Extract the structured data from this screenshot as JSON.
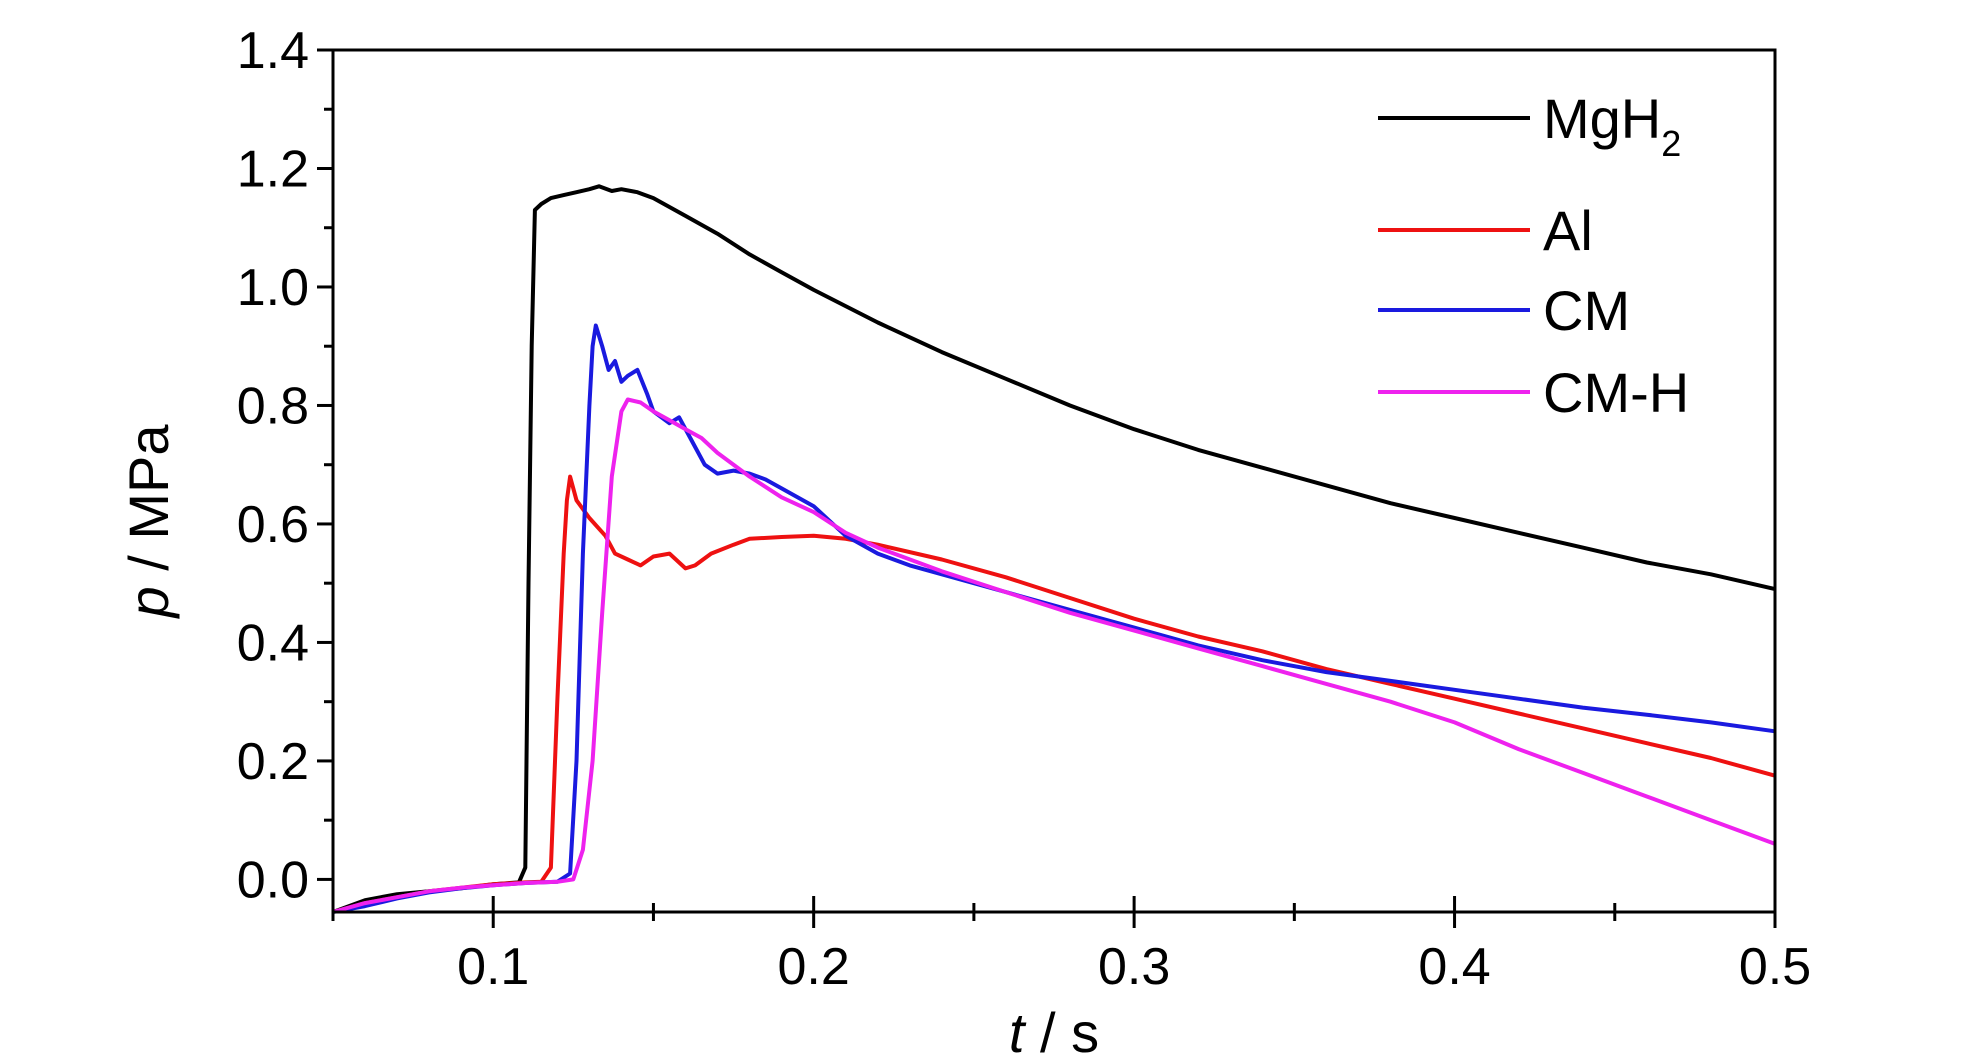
{
  "chart_data": {
    "type": "line",
    "title": "",
    "xlabel": {
      "var": "t",
      "unit": " / s"
    },
    "ylabel": {
      "var": "p",
      "unit": " / MPa"
    },
    "xlim": [
      0.05,
      0.5
    ],
    "ylim": [
      -0.055,
      1.4
    ],
    "xticks": [
      "0.1",
      "0.2",
      "0.3",
      "0.4",
      "0.5"
    ],
    "yticks": [
      "0.0",
      "0.2",
      "0.4",
      "0.6",
      "0.8",
      "1.0",
      "1.2",
      "1.4"
    ],
    "grid": false,
    "legend_position": "top-right",
    "series": [
      {
        "name": "MgH",
        "name_sub": "2",
        "color": "#000000",
        "points": [
          [
            0.05,
            -0.055
          ],
          [
            0.06,
            -0.035
          ],
          [
            0.07,
            -0.025
          ],
          [
            0.08,
            -0.02
          ],
          [
            0.09,
            -0.015
          ],
          [
            0.1,
            -0.008
          ],
          [
            0.108,
            -0.005
          ],
          [
            0.11,
            0.02
          ],
          [
            0.111,
            0.5
          ],
          [
            0.112,
            0.9
          ],
          [
            0.113,
            1.13
          ],
          [
            0.115,
            1.14
          ],
          [
            0.118,
            1.15
          ],
          [
            0.122,
            1.155
          ],
          [
            0.126,
            1.16
          ],
          [
            0.13,
            1.165
          ],
          [
            0.133,
            1.17
          ],
          [
            0.137,
            1.162
          ],
          [
            0.14,
            1.165
          ],
          [
            0.145,
            1.16
          ],
          [
            0.15,
            1.15
          ],
          [
            0.16,
            1.12
          ],
          [
            0.17,
            1.09
          ],
          [
            0.18,
            1.055
          ],
          [
            0.19,
            1.025
          ],
          [
            0.2,
            0.995
          ],
          [
            0.22,
            0.94
          ],
          [
            0.24,
            0.89
          ],
          [
            0.26,
            0.845
          ],
          [
            0.28,
            0.8
          ],
          [
            0.3,
            0.76
          ],
          [
            0.32,
            0.725
          ],
          [
            0.34,
            0.695
          ],
          [
            0.36,
            0.665
          ],
          [
            0.38,
            0.635
          ],
          [
            0.4,
            0.61
          ],
          [
            0.42,
            0.585
          ],
          [
            0.44,
            0.56
          ],
          [
            0.46,
            0.535
          ],
          [
            0.48,
            0.515
          ],
          [
            0.5,
            0.49
          ]
        ]
      },
      {
        "name": "Al",
        "name_sub": "",
        "color": "#ee1111",
        "points": [
          [
            0.05,
            -0.055
          ],
          [
            0.06,
            -0.04
          ],
          [
            0.07,
            -0.03
          ],
          [
            0.08,
            -0.02
          ],
          [
            0.09,
            -0.014
          ],
          [
            0.1,
            -0.008
          ],
          [
            0.11,
            -0.005
          ],
          [
            0.115,
            -0.004
          ],
          [
            0.118,
            0.02
          ],
          [
            0.12,
            0.3
          ],
          [
            0.122,
            0.55
          ],
          [
            0.123,
            0.64
          ],
          [
            0.124,
            0.68
          ],
          [
            0.126,
            0.64
          ],
          [
            0.13,
            0.61
          ],
          [
            0.135,
            0.58
          ],
          [
            0.138,
            0.55
          ],
          [
            0.142,
            0.54
          ],
          [
            0.146,
            0.53
          ],
          [
            0.15,
            0.545
          ],
          [
            0.155,
            0.55
          ],
          [
            0.16,
            0.525
          ],
          [
            0.163,
            0.53
          ],
          [
            0.168,
            0.55
          ],
          [
            0.175,
            0.565
          ],
          [
            0.18,
            0.575
          ],
          [
            0.19,
            0.578
          ],
          [
            0.2,
            0.58
          ],
          [
            0.21,
            0.575
          ],
          [
            0.22,
            0.565
          ],
          [
            0.24,
            0.54
          ],
          [
            0.26,
            0.51
          ],
          [
            0.28,
            0.475
          ],
          [
            0.3,
            0.44
          ],
          [
            0.32,
            0.41
          ],
          [
            0.34,
            0.385
          ],
          [
            0.36,
            0.355
          ],
          [
            0.38,
            0.33
          ],
          [
            0.4,
            0.305
          ],
          [
            0.42,
            0.28
          ],
          [
            0.44,
            0.255
          ],
          [
            0.46,
            0.23
          ],
          [
            0.48,
            0.205
          ],
          [
            0.5,
            0.175
          ]
        ]
      },
      {
        "name": "CM",
        "name_sub": "",
        "color": "#1a1adf",
        "points": [
          [
            0.05,
            -0.055
          ],
          [
            0.06,
            -0.045
          ],
          [
            0.07,
            -0.032
          ],
          [
            0.08,
            -0.022
          ],
          [
            0.09,
            -0.015
          ],
          [
            0.1,
            -0.01
          ],
          [
            0.11,
            -0.006
          ],
          [
            0.12,
            -0.004
          ],
          [
            0.124,
            0.01
          ],
          [
            0.126,
            0.2
          ],
          [
            0.128,
            0.55
          ],
          [
            0.13,
            0.8
          ],
          [
            0.131,
            0.9
          ],
          [
            0.132,
            0.935
          ],
          [
            0.134,
            0.9
          ],
          [
            0.136,
            0.86
          ],
          [
            0.138,
            0.875
          ],
          [
            0.14,
            0.84
          ],
          [
            0.142,
            0.85
          ],
          [
            0.145,
            0.86
          ],
          [
            0.148,
            0.82
          ],
          [
            0.15,
            0.79
          ],
          [
            0.155,
            0.77
          ],
          [
            0.158,
            0.78
          ],
          [
            0.162,
            0.74
          ],
          [
            0.166,
            0.7
          ],
          [
            0.17,
            0.685
          ],
          [
            0.175,
            0.69
          ],
          [
            0.18,
            0.685
          ],
          [
            0.185,
            0.675
          ],
          [
            0.19,
            0.66
          ],
          [
            0.2,
            0.63
          ],
          [
            0.21,
            0.58
          ],
          [
            0.22,
            0.55
          ],
          [
            0.23,
            0.53
          ],
          [
            0.24,
            0.515
          ],
          [
            0.26,
            0.485
          ],
          [
            0.28,
            0.455
          ],
          [
            0.3,
            0.425
          ],
          [
            0.32,
            0.395
          ],
          [
            0.34,
            0.37
          ],
          [
            0.36,
            0.35
          ],
          [
            0.38,
            0.335
          ],
          [
            0.4,
            0.32
          ],
          [
            0.42,
            0.305
          ],
          [
            0.44,
            0.29
          ],
          [
            0.46,
            0.278
          ],
          [
            0.48,
            0.265
          ],
          [
            0.5,
            0.25
          ]
        ]
      },
      {
        "name": "CM-H",
        "name_sub": "",
        "color": "#ee22ee",
        "points": [
          [
            0.05,
            -0.055
          ],
          [
            0.06,
            -0.04
          ],
          [
            0.07,
            -0.03
          ],
          [
            0.08,
            -0.02
          ],
          [
            0.09,
            -0.014
          ],
          [
            0.1,
            -0.01
          ],
          [
            0.11,
            -0.006
          ],
          [
            0.12,
            -0.004
          ],
          [
            0.125,
            0.0
          ],
          [
            0.128,
            0.05
          ],
          [
            0.131,
            0.2
          ],
          [
            0.134,
            0.45
          ],
          [
            0.137,
            0.68
          ],
          [
            0.14,
            0.79
          ],
          [
            0.142,
            0.81
          ],
          [
            0.146,
            0.805
          ],
          [
            0.15,
            0.79
          ],
          [
            0.155,
            0.775
          ],
          [
            0.16,
            0.76
          ],
          [
            0.165,
            0.745
          ],
          [
            0.17,
            0.72
          ],
          [
            0.18,
            0.68
          ],
          [
            0.19,
            0.645
          ],
          [
            0.2,
            0.62
          ],
          [
            0.21,
            0.585
          ],
          [
            0.22,
            0.56
          ],
          [
            0.24,
            0.52
          ],
          [
            0.26,
            0.485
          ],
          [
            0.28,
            0.45
          ],
          [
            0.3,
            0.42
          ],
          [
            0.32,
            0.39
          ],
          [
            0.34,
            0.36
          ],
          [
            0.36,
            0.33
          ],
          [
            0.38,
            0.3
          ],
          [
            0.4,
            0.265
          ],
          [
            0.42,
            0.22
          ],
          [
            0.44,
            0.18
          ],
          [
            0.46,
            0.14
          ],
          [
            0.48,
            0.1
          ],
          [
            0.5,
            0.06
          ]
        ]
      }
    ]
  }
}
